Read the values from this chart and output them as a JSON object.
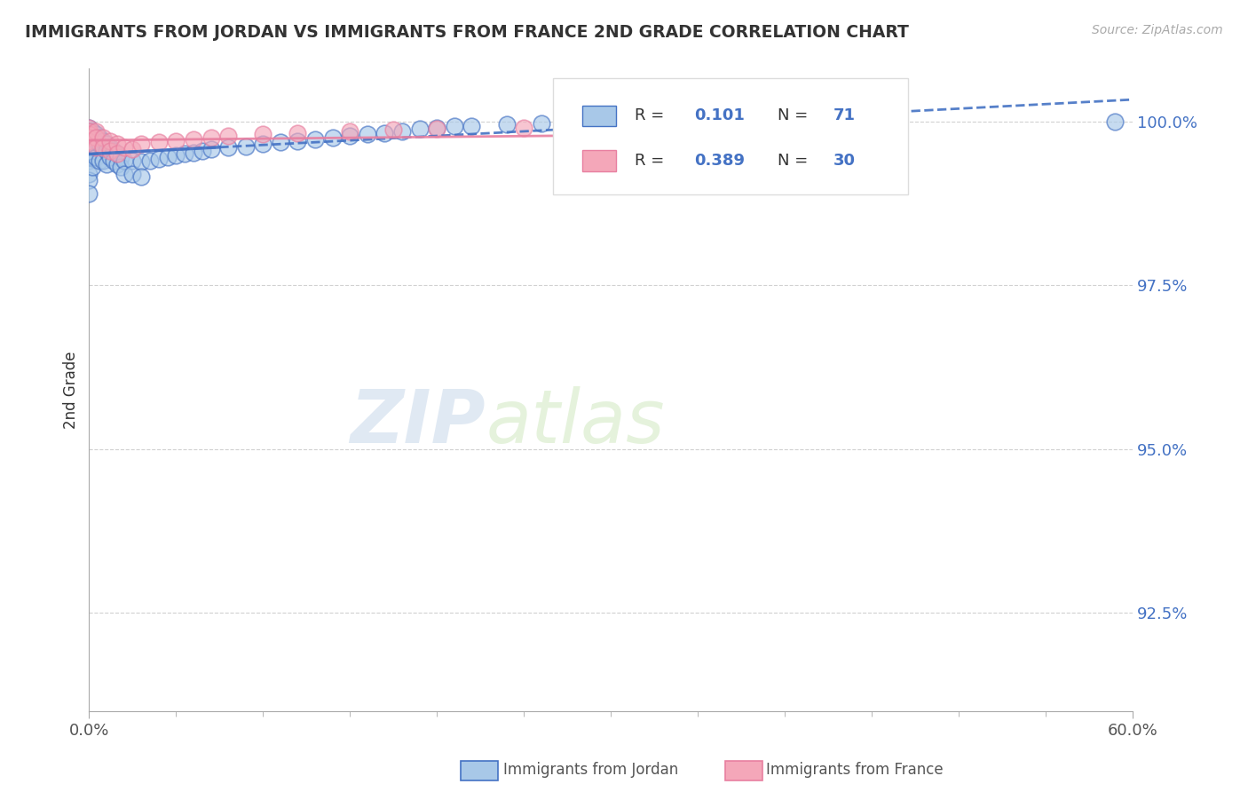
{
  "title": "IMMIGRANTS FROM JORDAN VS IMMIGRANTS FROM FRANCE 2ND GRADE CORRELATION CHART",
  "source": "Source: ZipAtlas.com",
  "ylabel": "2nd Grade",
  "xmin": 0.0,
  "xmax": 0.6,
  "ymin": 0.91,
  "ymax": 1.008,
  "yticks": [
    0.925,
    0.95,
    0.975,
    1.0
  ],
  "ytick_labels": [
    "92.5%",
    "95.0%",
    "97.5%",
    "100.0%"
  ],
  "xticks": [
    0.0,
    0.6
  ],
  "xtick_labels": [
    "0.0%",
    "60.0%"
  ],
  "color_jordan": "#a8c8e8",
  "color_france": "#f4a7b9",
  "color_jordan_line": "#4472c4",
  "color_france_line": "#e87fa0",
  "watermark_zip": "ZIP",
  "watermark_atlas": "atlas",
  "jordan_x": [
    0.0,
    0.0,
    0.0,
    0.0,
    0.0,
    0.0,
    0.0,
    0.0,
    0.0,
    0.0,
    0.0,
    0.0,
    0.002,
    0.002,
    0.002,
    0.002,
    0.002,
    0.004,
    0.004,
    0.004,
    0.004,
    0.006,
    0.006,
    0.006,
    0.008,
    0.008,
    0.008,
    0.01,
    0.01,
    0.01,
    0.012,
    0.012,
    0.014,
    0.014,
    0.016,
    0.016,
    0.018,
    0.018,
    0.02,
    0.02,
    0.025,
    0.025,
    0.03,
    0.03,
    0.035,
    0.04,
    0.045,
    0.05,
    0.055,
    0.06,
    0.065,
    0.07,
    0.08,
    0.09,
    0.1,
    0.11,
    0.12,
    0.13,
    0.14,
    0.15,
    0.16,
    0.17,
    0.18,
    0.19,
    0.2,
    0.21,
    0.22,
    0.24,
    0.26,
    0.28,
    0.59
  ],
  "jordan_y": [
    0.999,
    0.9985,
    0.998,
    0.9975,
    0.997,
    0.9965,
    0.9955,
    0.995,
    0.994,
    0.992,
    0.991,
    0.989,
    0.9985,
    0.9975,
    0.996,
    0.9945,
    0.993,
    0.998,
    0.997,
    0.996,
    0.9945,
    0.9975,
    0.9965,
    0.994,
    0.997,
    0.996,
    0.994,
    0.9965,
    0.9955,
    0.9935,
    0.996,
    0.9945,
    0.9955,
    0.994,
    0.995,
    0.9935,
    0.9945,
    0.993,
    0.994,
    0.992,
    0.994,
    0.992,
    0.9938,
    0.9915,
    0.994,
    0.9942,
    0.9945,
    0.9948,
    0.995,
    0.9952,
    0.9955,
    0.9958,
    0.996,
    0.9962,
    0.9965,
    0.9968,
    0.997,
    0.9972,
    0.9975,
    0.9978,
    0.998,
    0.9982,
    0.9985,
    0.9988,
    0.999,
    0.9992,
    0.9993,
    0.9995,
    0.9996,
    0.9998,
    1.0
  ],
  "france_x": [
    0.0,
    0.0,
    0.0,
    0.0,
    0.0,
    0.004,
    0.004,
    0.004,
    0.008,
    0.008,
    0.012,
    0.012,
    0.016,
    0.016,
    0.02,
    0.025,
    0.03,
    0.04,
    0.05,
    0.06,
    0.07,
    0.08,
    0.1,
    0.12,
    0.15,
    0.175,
    0.2,
    0.25,
    0.305,
    0.31
  ],
  "france_y": [
    0.999,
    0.9985,
    0.998,
    0.9975,
    0.997,
    0.9985,
    0.9975,
    0.996,
    0.9975,
    0.996,
    0.997,
    0.9955,
    0.9965,
    0.995,
    0.996,
    0.9958,
    0.9965,
    0.9968,
    0.997,
    0.9972,
    0.9975,
    0.9978,
    0.998,
    0.9982,
    0.9985,
    0.9987,
    0.9988,
    0.999,
    0.9992,
    0.9935
  ]
}
